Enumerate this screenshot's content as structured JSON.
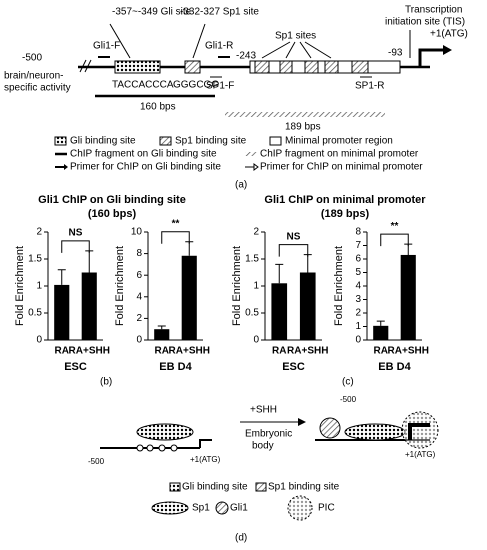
{
  "diagram_a": {
    "gli_site": "-357~-349 Gli site",
    "sp1_site": "-332-327 Sp1 site",
    "sp1_sites": "Sp1 sites",
    "tis": [
      "Transcription",
      "initiation site (TIS)"
    ],
    "start": "-500",
    "activity": [
      "brain/neuron-",
      "specific activity"
    ],
    "gli1_f": "Gli1-F",
    "gli1_r": "Gli1-R",
    "pos_243": "-243",
    "pos_93": "-93",
    "atg": "+1(ATG)",
    "gli_seq": "TACCACCCA",
    "sp1_seq": "GGGCGG",
    "sp1_f": "SP1-F",
    "sp1_r": "SP1-R",
    "frag1": "160 bps",
    "frag2": "189 bps",
    "legend": [
      "Gli binding site",
      "Sp1 binding site",
      "Minimal promoter region",
      "ChIP fragment on Gli binding site",
      "ChIP fragment on minimal promoter",
      "Primer for ChIP on Gli binding site",
      "Primer for ChIP on minimal promoter"
    ]
  },
  "panel_labels": [
    "(a)",
    "(b)",
    "(c)",
    "(d)"
  ],
  "group_titles": [
    [
      "Gli1 ChIP on Gli binding site",
      "(160 bps)"
    ],
    [
      "Gli1 ChIP on minimal promoter",
      "(189 bps)"
    ]
  ],
  "chart_data": [
    {
      "type": "bar",
      "categories": [
        "RA",
        "RA+SHH"
      ],
      "values": [
        1.02,
        1.25
      ],
      "errors": [
        0.28,
        0.4
      ],
      "color": "#000000",
      "ylim": [
        0,
        2
      ],
      "yticks": [
        0,
        0.5,
        1,
        1.5,
        2
      ],
      "y_label": "Fold Enrichment",
      "x_label": "ESC",
      "annotation": "NS"
    },
    {
      "type": "bar",
      "categories": [
        "RA",
        "RA+SHH"
      ],
      "values": [
        1.0,
        7.8
      ],
      "errors": [
        0.3,
        1.3
      ],
      "color": "#000000",
      "ylim": [
        0,
        10
      ],
      "yticks": [
        0,
        2,
        4,
        6,
        8,
        10
      ],
      "y_label": "Fold Enrichment",
      "x_label": "EB D4",
      "annotation": "**"
    },
    {
      "type": "bar",
      "categories": [
        "RA",
        "RA+SHH"
      ],
      "values": [
        1.05,
        1.25
      ],
      "errors": [
        0.35,
        0.33
      ],
      "color": "#000000",
      "ylim": [
        0,
        2
      ],
      "yticks": [
        0,
        0.5,
        1,
        1.5,
        2
      ],
      "y_label": "Fold Enrichment",
      "x_label": "ESC",
      "annotation": "NS"
    },
    {
      "type": "bar",
      "categories": [
        "RA",
        "RA+SHH"
      ],
      "values": [
        1.05,
        6.3
      ],
      "errors": [
        0.35,
        0.8
      ],
      "color": "#000000",
      "ylim": [
        0,
        8
      ],
      "yticks": [
        0,
        1,
        2,
        3,
        4,
        5,
        6,
        7,
        8
      ],
      "y_label": "Fold Enrichment",
      "x_label": "EB D4",
      "annotation": "**"
    }
  ],
  "diagram_d": {
    "shh": "+SHH",
    "eb": [
      "Embryonic",
      "body"
    ],
    "start_left": "-500",
    "atg_left": "+1(ATG)",
    "start_right": "-500",
    "atg_right": "+1(ATG)",
    "legend": [
      "Gli binding site",
      "Sp1 binding site",
      "Sp1",
      "Gli1",
      "PIC"
    ]
  }
}
